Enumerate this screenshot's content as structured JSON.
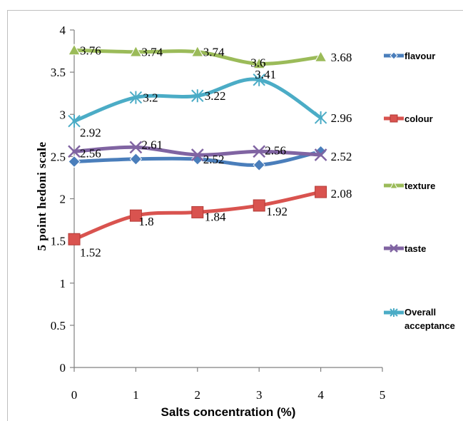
{
  "chart_data": {
    "type": "line",
    "title": "",
    "xlabel": "Salts concentration (%)",
    "ylabel": "5 point hedoni scale",
    "xlim": [
      0,
      5
    ],
    "ylim": [
      0,
      4
    ],
    "xticks": [
      "0",
      "1",
      "2",
      "3",
      "4",
      "5"
    ],
    "yticks": [
      "0",
      "0.5",
      "1",
      "1.5",
      "2",
      "2.5",
      "3",
      "3.5",
      "4"
    ],
    "grid": false,
    "legend_position": "right",
    "x": [
      0,
      1,
      2,
      3,
      4
    ],
    "series": [
      {
        "name": "flavour",
        "values": [
          2.44,
          2.47,
          2.47,
          2.4,
          2.56
        ],
        "labels": [],
        "color": "#4a7ebb",
        "marker": "diamond"
      },
      {
        "name": "colour",
        "values": [
          1.52,
          1.8,
          1.84,
          1.92,
          2.08
        ],
        "labels": [
          "1.52",
          "1.8",
          "1.84",
          "1.92",
          "2.08"
        ],
        "color": "#d9534f",
        "marker": "square"
      },
      {
        "name": "texture",
        "values": [
          3.76,
          3.74,
          3.74,
          3.6,
          3.68
        ],
        "labels": [
          "3.76",
          "3.74",
          "3.74",
          "3.6",
          "3.68"
        ],
        "color": "#9bbb59",
        "marker": "triangle"
      },
      {
        "name": "taste",
        "values": [
          2.56,
          2.61,
          2.52,
          2.56,
          2.52
        ],
        "labels": [
          "2.56",
          "2.61",
          "2.52",
          "2.56",
          "2.52"
        ],
        "color": "#8064a2",
        "marker": "x"
      },
      {
        "name": "Overall acceptance",
        "values": [
          2.92,
          3.2,
          3.22,
          3.41,
          2.96
        ],
        "labels": [
          "2.92",
          "3.2",
          "3.22",
          "3.41",
          "2.96"
        ],
        "color": "#4bacc6",
        "marker": "star"
      }
    ]
  }
}
